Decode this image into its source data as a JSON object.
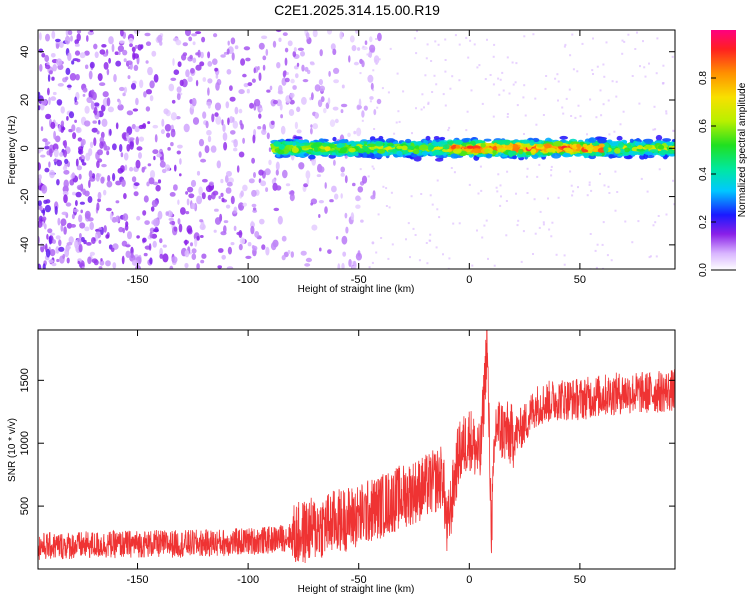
{
  "title": "C2E1.2025.314.15.00.R19",
  "chart_data": [
    {
      "type": "heatmap",
      "xlabel": "Height of straight line (km)",
      "ylabel": "Frequency (Hz)",
      "xlim": [
        -195,
        93
      ],
      "ylim": [
        -50,
        49
      ],
      "xticks": [
        -150,
        -100,
        -50,
        0,
        50
      ],
      "yticks": [
        -40,
        -20,
        0,
        20,
        40
      ],
      "colorbar": {
        "label": "Normalized spectral amplitude",
        "range": [
          0,
          1
        ],
        "ticks": [
          0.0,
          0.2,
          0.4,
          0.6,
          0.8
        ],
        "tick_labels": [
          "0.0",
          "0.2",
          "0.4",
          "0.6",
          "0.8"
        ]
      },
      "regions": [
        {
          "name": "scattered noise",
          "x_range": [
            -195,
            -40
          ],
          "freq_range": [
            -50,
            49
          ],
          "amplitude": 0.15
        },
        {
          "name": "signal band",
          "x_range": [
            -88,
            93
          ],
          "freq_center": 0,
          "freq_halfwidth": 3,
          "amplitude_range": [
            0.2,
            0.95
          ]
        },
        {
          "name": "peak",
          "x_range": [
            -10,
            60
          ],
          "freq_center": 0,
          "amplitude": 0.9
        }
      ]
    },
    {
      "type": "line",
      "xlabel": "Height of straight line (km)",
      "ylabel": "SNR (10 * v/v)",
      "xlim": [
        -195,
        93
      ],
      "ylim": [
        0,
        1900
      ],
      "xticks": [
        -150,
        -100,
        -50,
        0,
        50
      ],
      "yticks": [
        500,
        1000,
        1500
      ],
      "color": "#ef3333",
      "series": [
        {
          "name": "SNR",
          "x": [
            -195,
            -170,
            -150,
            -130,
            -110,
            -100,
            -90,
            -80,
            -75,
            -70,
            -60,
            -50,
            -40,
            -30,
            -20,
            -15,
            -12,
            -10,
            -5,
            0,
            5,
            8,
            10,
            12,
            15,
            20,
            25,
            30,
            40,
            50,
            60,
            70,
            80,
            93
          ],
          "values": [
            180,
            190,
            200,
            200,
            210,
            220,
            230,
            260,
            290,
            320,
            380,
            420,
            500,
            580,
            650,
            700,
            740,
            300,
            900,
            1050,
            880,
            1800,
            320,
            1150,
            1100,
            1050,
            1150,
            1300,
            1350,
            1350,
            1380,
            1400,
            1400,
            1420
          ]
        }
      ]
    }
  ]
}
